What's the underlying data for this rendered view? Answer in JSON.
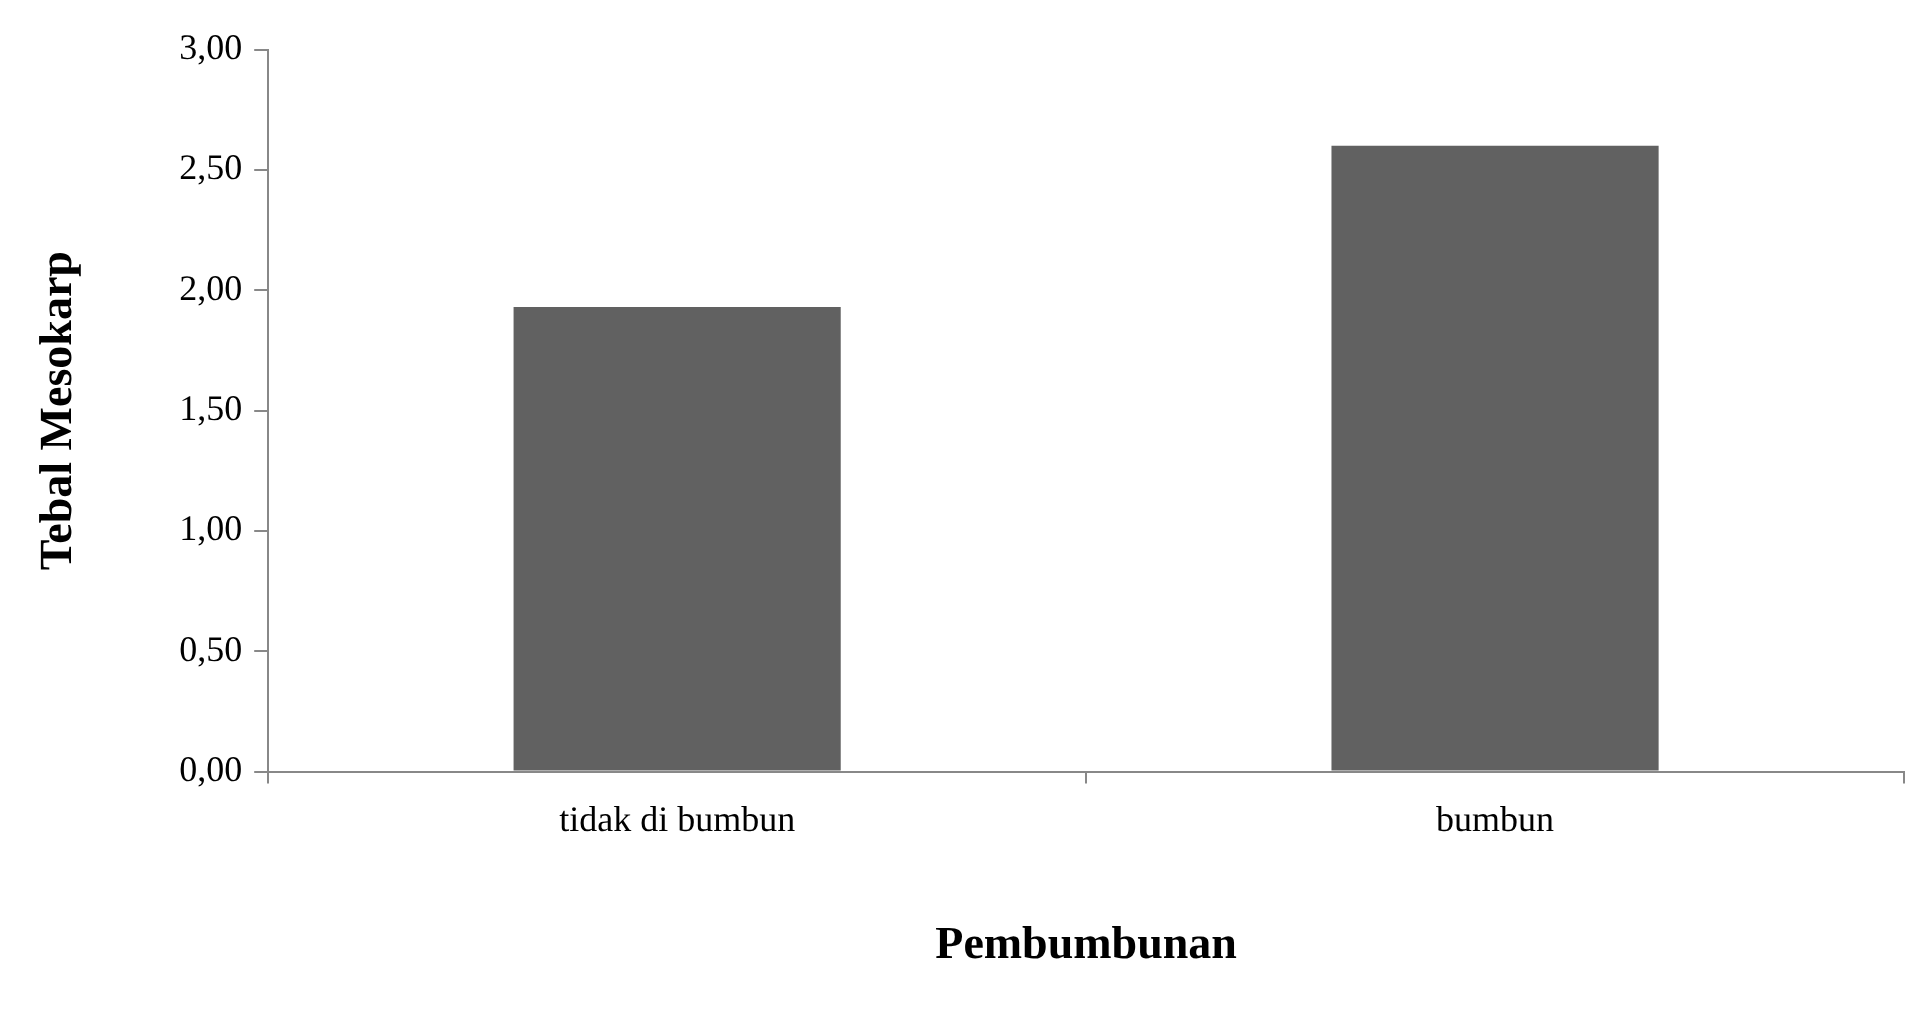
{
  "chart_data": {
    "type": "bar",
    "xlabel": "Pembumbunan",
    "ylabel": "Tebal Mesokarp",
    "categories": [
      "tidak di bumbun",
      "bumbun"
    ],
    "values": [
      1.93,
      2.6
    ],
    "color": "#616161",
    "ylim": [
      0,
      3
    ],
    "yticks": [
      {
        "value": 0,
        "label": "0,00"
      },
      {
        "value": 0.5,
        "label": "0,50"
      },
      {
        "value": 1,
        "label": "1,00"
      },
      {
        "value": 1.5,
        "label": "1,50"
      },
      {
        "value": 2,
        "label": "2,00"
      },
      {
        "value": 2.5,
        "label": "2,50"
      },
      {
        "value": 3,
        "label": "3,00"
      }
    ],
    "grid": false,
    "legend": false
  }
}
